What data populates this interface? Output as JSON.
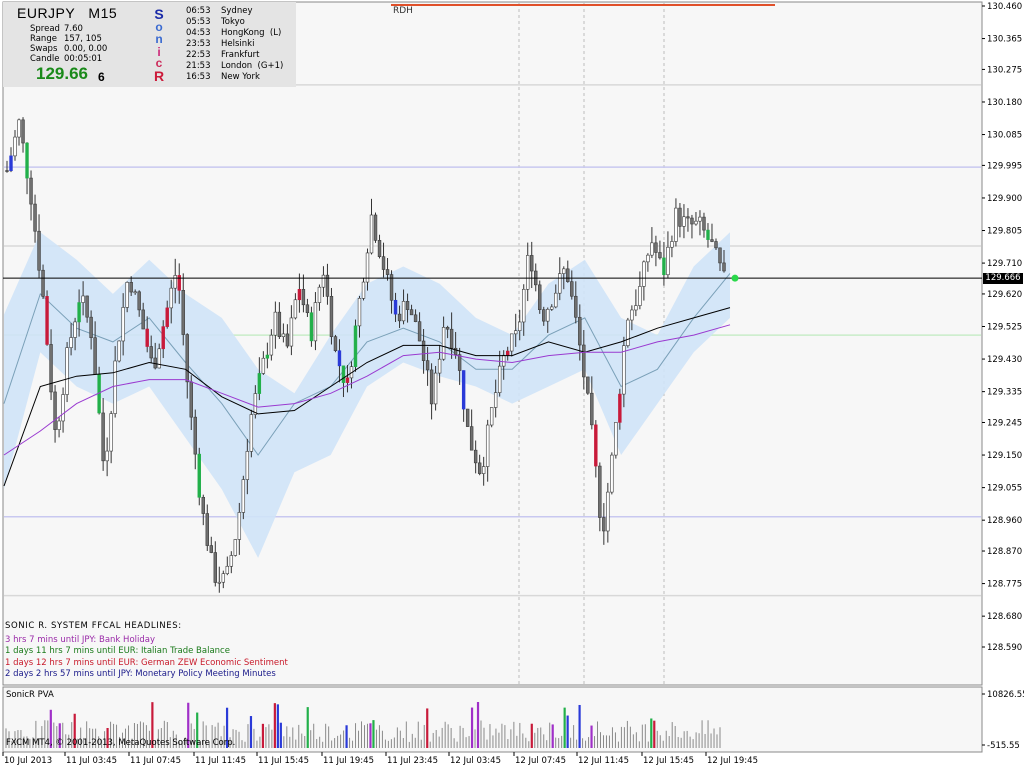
{
  "info_panel": {
    "symbol": "EURJPY",
    "timeframe": "M15",
    "rows": [
      {
        "label": "Spread",
        "value": "7.60"
      },
      {
        "label": "Range",
        "value": "157, 105"
      },
      {
        "label": "Swaps",
        "value": "0.00, 0.00"
      },
      {
        "label": "Candle",
        "value": "00:05:01"
      }
    ],
    "price": "129.66",
    "price_last_digit": "6",
    "sonic_letters": [
      {
        "ch": "S",
        "color": "#1a2aa8"
      },
      {
        "ch": "o",
        "color": "#3a6ad0"
      },
      {
        "ch": "n",
        "color": "#3a6ad0"
      },
      {
        "ch": "i",
        "color": "#cc2a7a"
      },
      {
        "ch": "c",
        "color": "#cc2a5a"
      },
      {
        "ch": "R",
        "color": "#cc1a3a"
      }
    ],
    "sessions": [
      {
        "time": "06:53",
        "city": "Sydney"
      },
      {
        "time": "05:53",
        "city": "Tokyo"
      },
      {
        "time": "04:53",
        "city": "HongKong  (L)"
      },
      {
        "time": "23:53",
        "city": "Helsinki"
      },
      {
        "time": "22:53",
        "city": "Frankfurt"
      },
      {
        "time": "21:53",
        "city": "London  (G+1)"
      },
      {
        "time": "16:53",
        "city": "New York"
      }
    ]
  },
  "rdh_label": "RDH",
  "headlines": {
    "title": "SONIC R. SYSTEM  FFCAL HEADLINES:",
    "items": [
      {
        "text": "3 hrs 7 mins until JPY: Bank Holiday",
        "color": "#9a2aa8"
      },
      {
        "text": "1 days 11 hrs 7 mins until EUR: Italian Trade Balance",
        "color": "#1a7a1a"
      },
      {
        "text": "1 days 12 hrs 7 mins until EUR: German ZEW Economic Sentiment",
        "color": "#c81a2a"
      },
      {
        "text": "2 days 2 hrs 57 mins until JPY: Monetary Policy Meeting Minutes",
        "color": "#1a1a8a"
      }
    ]
  },
  "subwindow": {
    "label": "SonicR PVA",
    "ticks": [
      "10826.55",
      "-515.55"
    ]
  },
  "copyright": "FXCM MT4, © 2001-2013, MetaQuotes Software Corp.",
  "current_price_label": "129.666",
  "chart_data": {
    "type": "candlestick",
    "symbol": "EURJPY",
    "timeframe": "M15",
    "ylim": [
      128.59,
      130.46
    ],
    "y_ticks": [
      "130.460",
      "130.365",
      "130.275",
      "130.180",
      "130.085",
      "129.995",
      "129.900",
      "129.805",
      "129.710",
      "129.620",
      "129.525",
      "129.430",
      "129.335",
      "129.245",
      "129.150",
      "129.055",
      "128.960",
      "128.870",
      "128.775",
      "128.680",
      "128.590"
    ],
    "x_ticks": [
      "10 Jul 2013",
      "11 Jul 03:45",
      "11 Jul 07:45",
      "11 Jul 11:45",
      "11 Jul 15:45",
      "11 Jul 19:45",
      "11 Jul 23:45",
      "12 Jul 03:45",
      "12 Jul 07:45",
      "12 Jul 11:45",
      "12 Jul 15:45",
      "12 Jul 19:45"
    ],
    "current_price": 129.666,
    "candle_waypoints": [
      129.98,
      130.12,
      129.9,
      129.6,
      129.2,
      129.45,
      129.62,
      129.5,
      129.1,
      129.45,
      129.68,
      129.55,
      129.4,
      129.55,
      129.7,
      129.3,
      129.0,
      128.8,
      128.78,
      128.95,
      129.25,
      129.4,
      129.55,
      129.45,
      129.65,
      129.5,
      129.7,
      129.45,
      129.35,
      129.6,
      129.85,
      129.7,
      129.55,
      129.6,
      129.48,
      129.3,
      129.55,
      129.45,
      129.2,
      129.1,
      129.3,
      129.45,
      129.5,
      129.75,
      129.55,
      129.62,
      129.7,
      129.5,
      129.25,
      128.92,
      129.2,
      129.55,
      129.62,
      129.78,
      129.68,
      129.85,
      129.82,
      129.82,
      129.76,
      129.66
    ],
    "bands": {
      "upper": [
        129.56,
        129.8,
        129.72,
        129.62,
        129.72,
        129.62,
        129.55,
        129.4,
        129.33,
        129.5,
        129.65,
        129.7,
        129.65,
        129.55,
        129.5,
        129.65,
        129.72,
        129.55,
        129.5,
        129.7,
        129.8
      ],
      "mid": [
        129.3,
        129.62,
        129.52,
        129.48,
        129.55,
        129.42,
        129.3,
        129.15,
        129.3,
        129.35,
        129.48,
        129.52,
        129.48,
        129.4,
        129.4,
        129.5,
        129.55,
        129.35,
        129.4,
        129.55,
        129.68
      ],
      "lower": [
        129.05,
        129.45,
        129.35,
        129.3,
        129.35,
        129.2,
        129.05,
        128.85,
        129.1,
        129.15,
        129.35,
        129.42,
        129.38,
        129.35,
        129.3,
        129.35,
        129.4,
        129.15,
        129.3,
        129.45,
        129.55
      ]
    },
    "black_ma": [
      129.06,
      129.35,
      129.38,
      129.39,
      129.42,
      129.4,
      129.32,
      129.27,
      129.28,
      129.35,
      129.42,
      129.47,
      129.47,
      129.44,
      129.44,
      129.48,
      129.45,
      129.48,
      129.52,
      129.55,
      129.58
    ],
    "purple_ma": [
      129.15,
      129.22,
      129.3,
      129.35,
      129.37,
      129.37,
      129.33,
      129.29,
      129.3,
      129.33,
      129.38,
      129.44,
      129.45,
      129.43,
      129.42,
      129.44,
      129.45,
      129.45,
      129.48,
      129.5,
      129.53
    ],
    "horizontal_lines": [
      {
        "price": 130.23,
        "color": "#d8d8d8"
      },
      {
        "price": 129.99,
        "color": "#c8c8f0"
      },
      {
        "price": 129.76,
        "color": "#d8d8d8"
      },
      {
        "price": 129.5,
        "color": "#c8ecc8"
      },
      {
        "price": 128.97,
        "color": "#c8c8f0"
      },
      {
        "price": 128.74,
        "color": "#d8d8d8"
      }
    ],
    "colors": {
      "bull": "#3a3a3a",
      "bear": "#3a3a3a",
      "accent_green": "#22b04a",
      "accent_red": "#c81a3a",
      "accent_blue": "#2a3ad8",
      "accent_purple": "#a030c8",
      "band_fill": "#cfe3f7",
      "band_mid": "#7aa0b8"
    }
  }
}
